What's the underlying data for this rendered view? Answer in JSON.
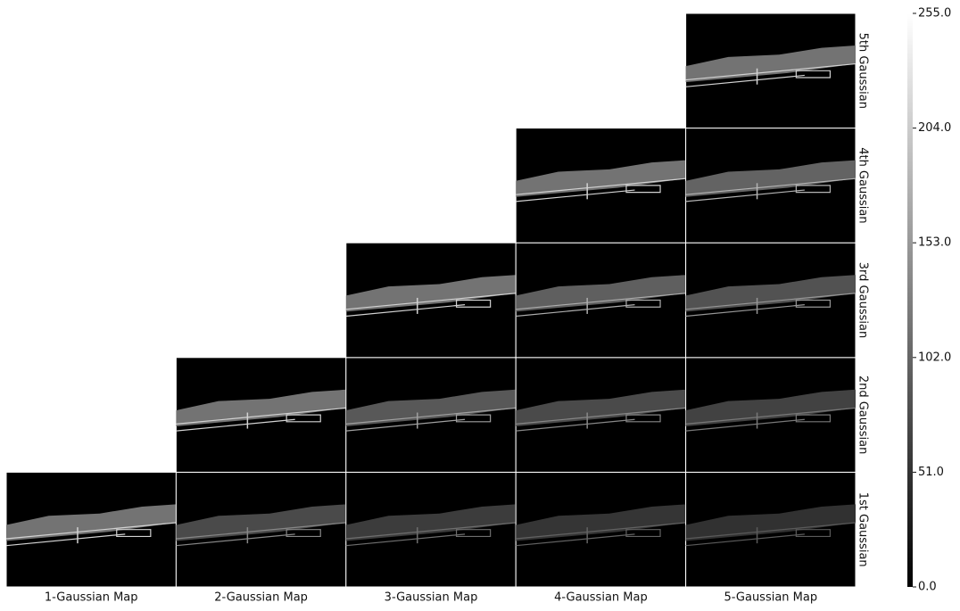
{
  "columns": [
    "1-Gaussian Map",
    "2-Gaussian Map",
    "3-Gaussian Map",
    "4-Gaussian Map",
    "5-Gaussian Map"
  ],
  "rows": [
    "1st Gaussian",
    "2nd Gaussian",
    "3rd Gaussian",
    "4th Gaussian",
    "5th Gaussian"
  ],
  "colorbar": {
    "lim": [
      0,
      255
    ],
    "ticks": [
      {
        "value": 0,
        "label": "0.0"
      },
      {
        "value": 51,
        "label": "51.0"
      },
      {
        "value": 102,
        "label": "102.0"
      },
      {
        "value": 153,
        "label": "153.0"
      },
      {
        "value": 204,
        "label": "204.0"
      },
      {
        "value": 255,
        "label": "255.0"
      }
    ]
  }
}
